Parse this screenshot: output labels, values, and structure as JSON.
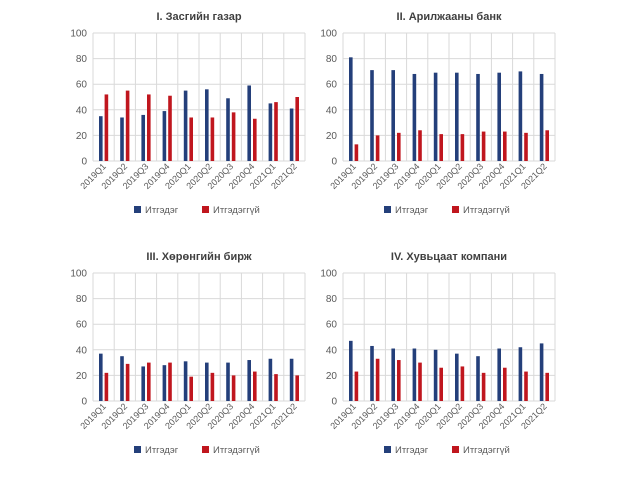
{
  "colors": {
    "trust": "#243F7A",
    "distrust": "#C0161E",
    "grid": "#D9D9D9",
    "text": "#595959",
    "title": "#404040"
  },
  "chart_data": [
    {
      "type": "bar",
      "title": "I. Засгийн газар",
      "categories": [
        "2019Q1",
        "2019Q2",
        "2019Q3",
        "2019Q4",
        "2020Q1",
        "2020Q2",
        "2020Q3",
        "2020Q4",
        "2021Q1",
        "2021Q2"
      ],
      "series": [
        {
          "name": "Итгэдэг",
          "values": [
            35,
            34,
            36,
            39,
            55,
            56,
            49,
            59,
            45,
            41
          ]
        },
        {
          "name": "Итгэдэггүй",
          "values": [
            52,
            55,
            52,
            51,
            34,
            34,
            38,
            33,
            46,
            50
          ]
        }
      ],
      "ylim": [
        0,
        100
      ],
      "yticks": [
        0,
        20,
        40,
        60,
        80,
        100
      ],
      "legend": "bottom"
    },
    {
      "type": "bar",
      "title": "II. Арилжааны банк",
      "categories": [
        "2019Q1",
        "2019Q2",
        "2019Q3",
        "2019Q4",
        "2020Q1",
        "2020Q2",
        "2020Q3",
        "2020Q4",
        "2021Q1",
        "2021Q2"
      ],
      "series": [
        {
          "name": "Итгэдэг",
          "values": [
            81,
            71,
            71,
            68,
            69,
            69,
            68,
            69,
            70,
            68
          ]
        },
        {
          "name": "Итгэдэггүй",
          "values": [
            13,
            20,
            22,
            24,
            21,
            21,
            23,
            23,
            22,
            24
          ]
        }
      ],
      "ylim": [
        0,
        100
      ],
      "yticks": [
        0,
        20,
        40,
        60,
        80,
        100
      ],
      "legend": "bottom"
    },
    {
      "type": "bar",
      "title": "III. Хөрөнгийн бирж",
      "categories": [
        "2019Q1",
        "2019Q2",
        "2019Q3",
        "2019Q4",
        "2020Q1",
        "2020Q2",
        "2020Q3",
        "2020Q4",
        "2021Q1",
        "2021Q2"
      ],
      "series": [
        {
          "name": "Итгэдэг",
          "values": [
            37,
            35,
            27,
            28,
            31,
            30,
            30,
            32,
            33,
            33
          ]
        },
        {
          "name": "Итгэдэггүй",
          "values": [
            22,
            29,
            30,
            30,
            19,
            22,
            20,
            23,
            21,
            20
          ]
        }
      ],
      "ylim": [
        0,
        100
      ],
      "yticks": [
        0,
        20,
        40,
        60,
        80,
        100
      ],
      "legend": "bottom"
    },
    {
      "type": "bar",
      "title": "IV. Хувьцаат компани",
      "categories": [
        "2019Q1",
        "2019Q2",
        "2019Q3",
        "2019Q4",
        "2020Q1",
        "2020Q2",
        "2020Q3",
        "2020Q4",
        "2021Q1",
        "2021Q2"
      ],
      "series": [
        {
          "name": "Итгэдэг",
          "values": [
            47,
            43,
            41,
            41,
            40,
            37,
            35,
            41,
            42,
            45
          ]
        },
        {
          "name": "Итгэдэггүй",
          "values": [
            23,
            33,
            32,
            30,
            26,
            27,
            22,
            26,
            23,
            22
          ]
        }
      ],
      "ylim": [
        0,
        100
      ],
      "yticks": [
        0,
        20,
        40,
        60,
        80,
        100
      ],
      "legend": "bottom"
    }
  ]
}
